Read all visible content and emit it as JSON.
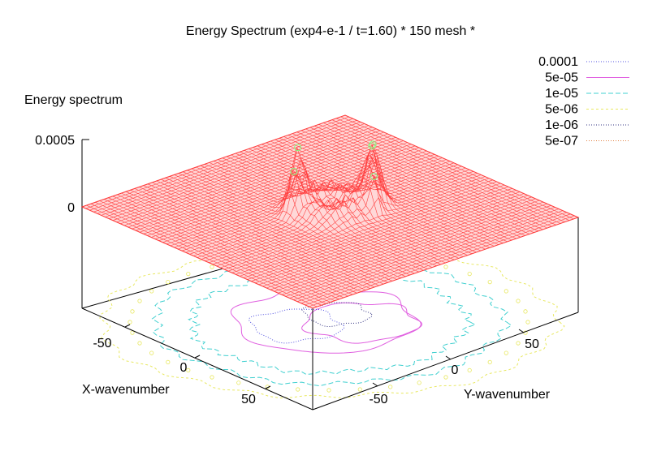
{
  "chart_data": {
    "type": "surface3d",
    "title": "Energy Spectrum (exp4-e-1 / t=1.60) * 150 mesh *",
    "xlabel": "X-wavenumber",
    "ylabel": "Y-wavenumber",
    "zlabel": "Energy spectrum",
    "xticks": [
      "-50",
      "0",
      "50"
    ],
    "yticks": [
      "-50",
      "0",
      "50"
    ],
    "zticks": [
      "0",
      "0.0005"
    ],
    "x_values": [
      -50,
      0,
      50
    ],
    "y_values": [
      -50,
      0,
      50
    ],
    "z_values": [
      0,
      0.0005
    ],
    "zlim": [
      0,
      0.0005
    ],
    "surface_color": "#ff4040",
    "peak_color": "#80ff80",
    "grid": false,
    "legend_placement": "top-right",
    "contour_levels": [
      {
        "label": "0.0001",
        "level": 0.0001,
        "color": "#5050e0",
        "dash": "1,2"
      },
      {
        "label": "5e-05",
        "level": 5e-05,
        "color": "#e060e0",
        "dash": ""
      },
      {
        "label": "1e-05",
        "level": 1e-05,
        "color": "#40d0d0",
        "dash": "6,3"
      },
      {
        "label": "5e-06",
        "level": 5e-06,
        "color": "#e8e860",
        "dash": "3,3"
      },
      {
        "label": "1e-06",
        "level": 1e-06,
        "color": "#303080",
        "dash": "1,2"
      },
      {
        "label": "5e-07",
        "level": 5e-07,
        "color": "#e08040",
        "dash": "1,2"
      }
    ]
  }
}
